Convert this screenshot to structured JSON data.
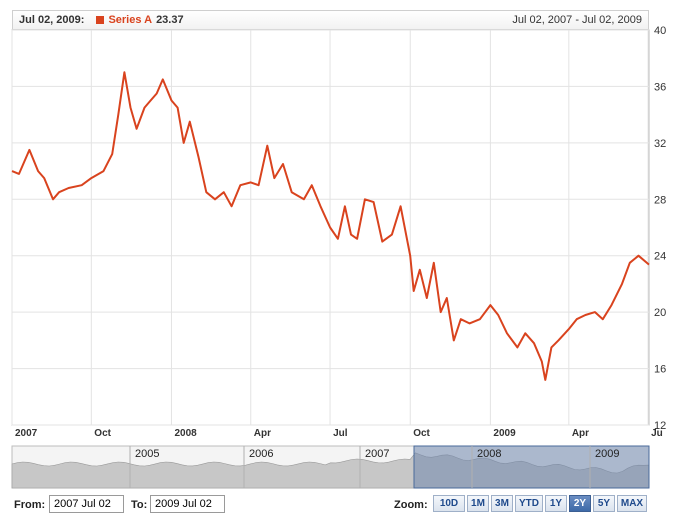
{
  "header": {
    "date_label": "Jul 02, 2009:",
    "series_name": "Series A",
    "series_value": "23.37",
    "range_text": "Jul 02, 2007 - Jul 02, 2009"
  },
  "colors": {
    "series": "#d9431e",
    "navigator_fill": "#c7c7c7",
    "navigator_selected": "#6f86ad",
    "grid": "#e3e3e3"
  },
  "chart_data": {
    "type": "line",
    "title": "",
    "xlabel": "",
    "ylabel": "",
    "x_range": [
      "2007-07-02",
      "2009-07-02"
    ],
    "ylim": [
      12,
      40
    ],
    "y_ticks": [
      "12",
      "16",
      "20",
      "24",
      "28",
      "32",
      "36",
      "40"
    ],
    "x_ticks": [
      {
        "label": "2007",
        "date": "2007-07-02"
      },
      {
        "label": "Oct",
        "date": "2007-10-01"
      },
      {
        "label": "2008",
        "date": "2008-01-01"
      },
      {
        "label": "Apr",
        "date": "2008-04-01"
      },
      {
        "label": "Jul",
        "date": "2008-07-01"
      },
      {
        "label": "Oct",
        "date": "2008-10-01"
      },
      {
        "label": "2009",
        "date": "2009-01-01"
      },
      {
        "label": "Apr",
        "date": "2009-04-01"
      },
      {
        "label": "Ju",
        "date": "2009-07-01"
      }
    ],
    "grid": true,
    "series": [
      {
        "name": "Series A",
        "points": [
          [
            "2007-07-02",
            30.0
          ],
          [
            "2007-07-10",
            29.8
          ],
          [
            "2007-07-22",
            31.5
          ],
          [
            "2007-08-01",
            30.0
          ],
          [
            "2007-08-08",
            29.5
          ],
          [
            "2007-08-18",
            28.0
          ],
          [
            "2007-08-25",
            28.5
          ],
          [
            "2007-09-05",
            28.8
          ],
          [
            "2007-09-20",
            29.0
          ],
          [
            "2007-10-01",
            29.5
          ],
          [
            "2007-10-15",
            30.0
          ],
          [
            "2007-10-25",
            31.2
          ],
          [
            "2007-11-01",
            34.0
          ],
          [
            "2007-11-08",
            37.0
          ],
          [
            "2007-11-15",
            34.5
          ],
          [
            "2007-11-22",
            33.0
          ],
          [
            "2007-12-01",
            34.5
          ],
          [
            "2007-12-08",
            35.0
          ],
          [
            "2007-12-15",
            35.5
          ],
          [
            "2007-12-22",
            36.5
          ],
          [
            "2008-01-01",
            35.0
          ],
          [
            "2008-01-08",
            34.5
          ],
          [
            "2008-01-15",
            32.0
          ],
          [
            "2008-01-22",
            33.5
          ],
          [
            "2008-02-01",
            31.0
          ],
          [
            "2008-02-10",
            28.5
          ],
          [
            "2008-02-20",
            28.0
          ],
          [
            "2008-03-01",
            28.5
          ],
          [
            "2008-03-10",
            27.5
          ],
          [
            "2008-03-20",
            29.0
          ],
          [
            "2008-04-01",
            29.2
          ],
          [
            "2008-04-10",
            29.0
          ],
          [
            "2008-04-20",
            31.8
          ],
          [
            "2008-04-28",
            29.5
          ],
          [
            "2008-05-08",
            30.5
          ],
          [
            "2008-05-18",
            28.5
          ],
          [
            "2008-06-01",
            28.0
          ],
          [
            "2008-06-10",
            29.0
          ],
          [
            "2008-06-20",
            27.5
          ],
          [
            "2008-07-01",
            26.0
          ],
          [
            "2008-07-10",
            25.2
          ],
          [
            "2008-07-18",
            27.5
          ],
          [
            "2008-07-25",
            25.5
          ],
          [
            "2008-08-01",
            25.2
          ],
          [
            "2008-08-10",
            28.0
          ],
          [
            "2008-08-20",
            27.8
          ],
          [
            "2008-08-30",
            25.0
          ],
          [
            "2008-09-10",
            25.5
          ],
          [
            "2008-09-20",
            27.5
          ],
          [
            "2008-10-01",
            24.0
          ],
          [
            "2008-10-05",
            21.5
          ],
          [
            "2008-10-12",
            23.0
          ],
          [
            "2008-10-20",
            21.0
          ],
          [
            "2008-10-28",
            23.5
          ],
          [
            "2008-11-05",
            20.0
          ],
          [
            "2008-11-12",
            21.0
          ],
          [
            "2008-11-20",
            18.0
          ],
          [
            "2008-11-28",
            19.5
          ],
          [
            "2008-12-08",
            19.2
          ],
          [
            "2008-12-20",
            19.5
          ],
          [
            "2009-01-01",
            20.5
          ],
          [
            "2009-01-10",
            19.8
          ],
          [
            "2009-01-20",
            18.5
          ],
          [
            "2009-02-01",
            17.5
          ],
          [
            "2009-02-10",
            18.5
          ],
          [
            "2009-02-20",
            17.8
          ],
          [
            "2009-03-01",
            16.5
          ],
          [
            "2009-03-05",
            15.2
          ],
          [
            "2009-03-12",
            17.5
          ],
          [
            "2009-03-20",
            18.0
          ],
          [
            "2009-04-01",
            18.8
          ],
          [
            "2009-04-10",
            19.5
          ],
          [
            "2009-04-20",
            19.8
          ],
          [
            "2009-05-01",
            20.0
          ],
          [
            "2009-05-10",
            19.5
          ],
          [
            "2009-05-20",
            20.5
          ],
          [
            "2009-06-01",
            22.0
          ],
          [
            "2009-06-10",
            23.5
          ],
          [
            "2009-06-20",
            24.0
          ],
          [
            "2009-07-02",
            23.37
          ]
        ]
      }
    ]
  },
  "navigator": {
    "year_labels": [
      "2005",
      "2006",
      "2007",
      "2008",
      "2009"
    ],
    "selected_range": [
      "2007-07-02",
      "2009-07-02"
    ]
  },
  "controls": {
    "from_label": "From:",
    "from_value": "2007 Jul 02",
    "to_label": "To:",
    "to_value": "2009 Jul 02",
    "zoom_label": "Zoom:",
    "zoom_buttons": [
      "10D",
      "1M",
      "3M",
      "YTD",
      "1Y",
      "2Y",
      "5Y",
      "MAX"
    ],
    "zoom_active": "2Y"
  }
}
